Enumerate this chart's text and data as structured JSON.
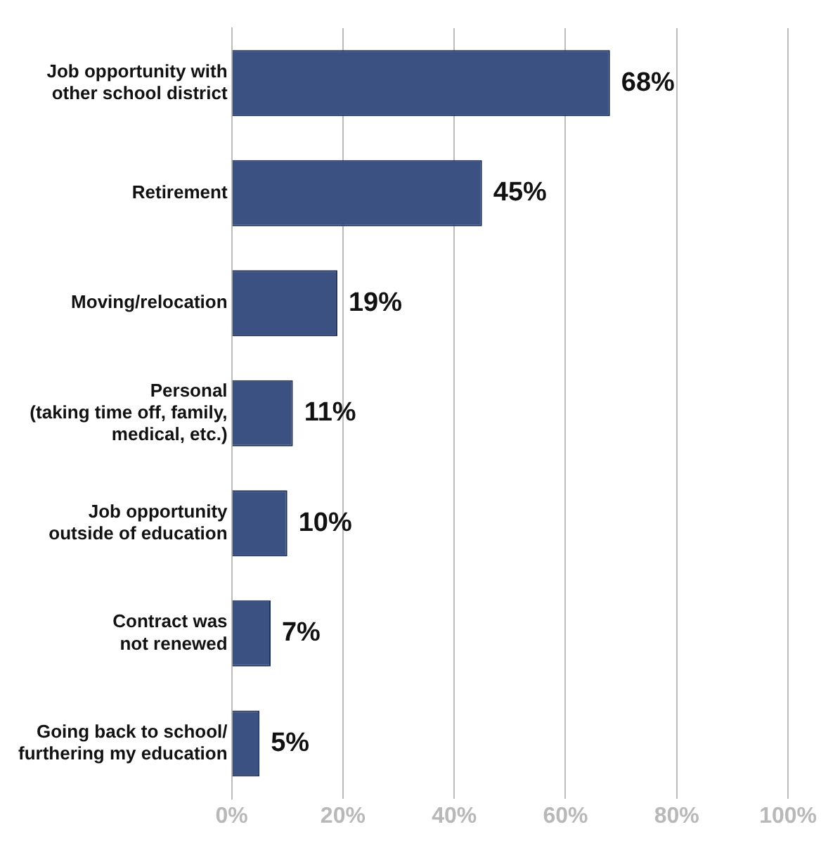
{
  "chart_data": {
    "type": "bar",
    "orientation": "horizontal",
    "categories": [
      "Job opportunity with\nother school district",
      "Retirement",
      "Moving/relocation",
      "Personal\n(taking time off, family,\nmedical, etc.)",
      "Job opportunity\noutside of education",
      "Contract was\nnot renewed",
      "Going back to school/\nfurthering my education"
    ],
    "values": [
      68,
      45,
      19,
      11,
      10,
      7,
      5
    ],
    "value_labels": [
      "68%",
      "45%",
      "19%",
      "11%",
      "10%",
      "7%",
      "5%"
    ],
    "color": "#3b5182",
    "xlim": [
      0,
      100
    ],
    "xticks": [
      {
        "value": 0,
        "label": "0%"
      },
      {
        "value": 20,
        "label": "20%"
      },
      {
        "value": 40,
        "label": "40%"
      },
      {
        "value": 60,
        "label": "60%"
      },
      {
        "value": 80,
        "label": "80%"
      },
      {
        "value": 100,
        "label": "100%"
      }
    ],
    "grid": "x"
  }
}
